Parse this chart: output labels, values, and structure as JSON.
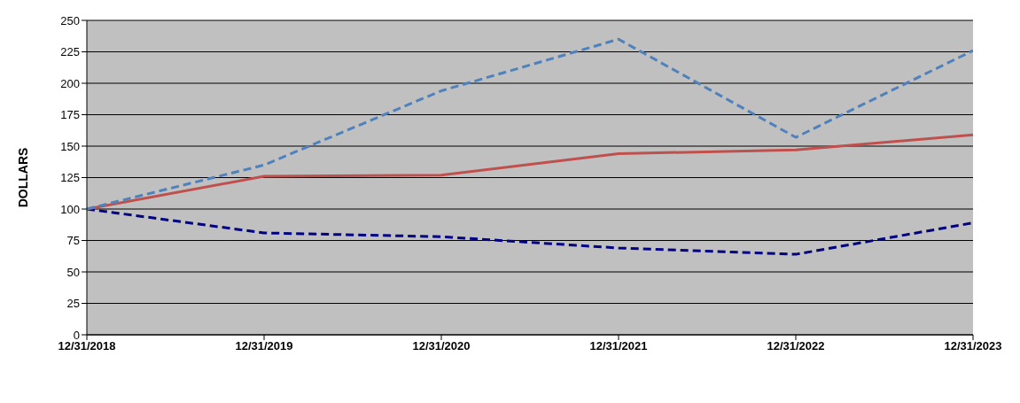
{
  "chart_data": {
    "type": "line",
    "ylabel": "DOLLARS",
    "categories": [
      "12/31/2018",
      "12/31/2019",
      "12/31/2020",
      "12/31/2021",
      "12/31/2022",
      "12/31/2023"
    ],
    "series": [
      {
        "color": "#000080",
        "line_style": "dashed",
        "values": [
          100,
          81,
          78,
          69,
          64,
          89
        ]
      },
      {
        "color": "#c0504d",
        "line_style": "solid",
        "values": [
          100,
          126,
          127,
          144,
          147,
          159
        ]
      },
      {
        "color": "#4f81bd",
        "line_style": "dashed",
        "values": [
          100,
          135,
          194,
          235,
          157,
          226
        ]
      }
    ],
    "ylim": [
      0,
      250
    ],
    "yticks": [
      0,
      25,
      50,
      75,
      100,
      125,
      150,
      175,
      200,
      225,
      250
    ],
    "grid": "y",
    "legend": false,
    "marker": "none"
  }
}
